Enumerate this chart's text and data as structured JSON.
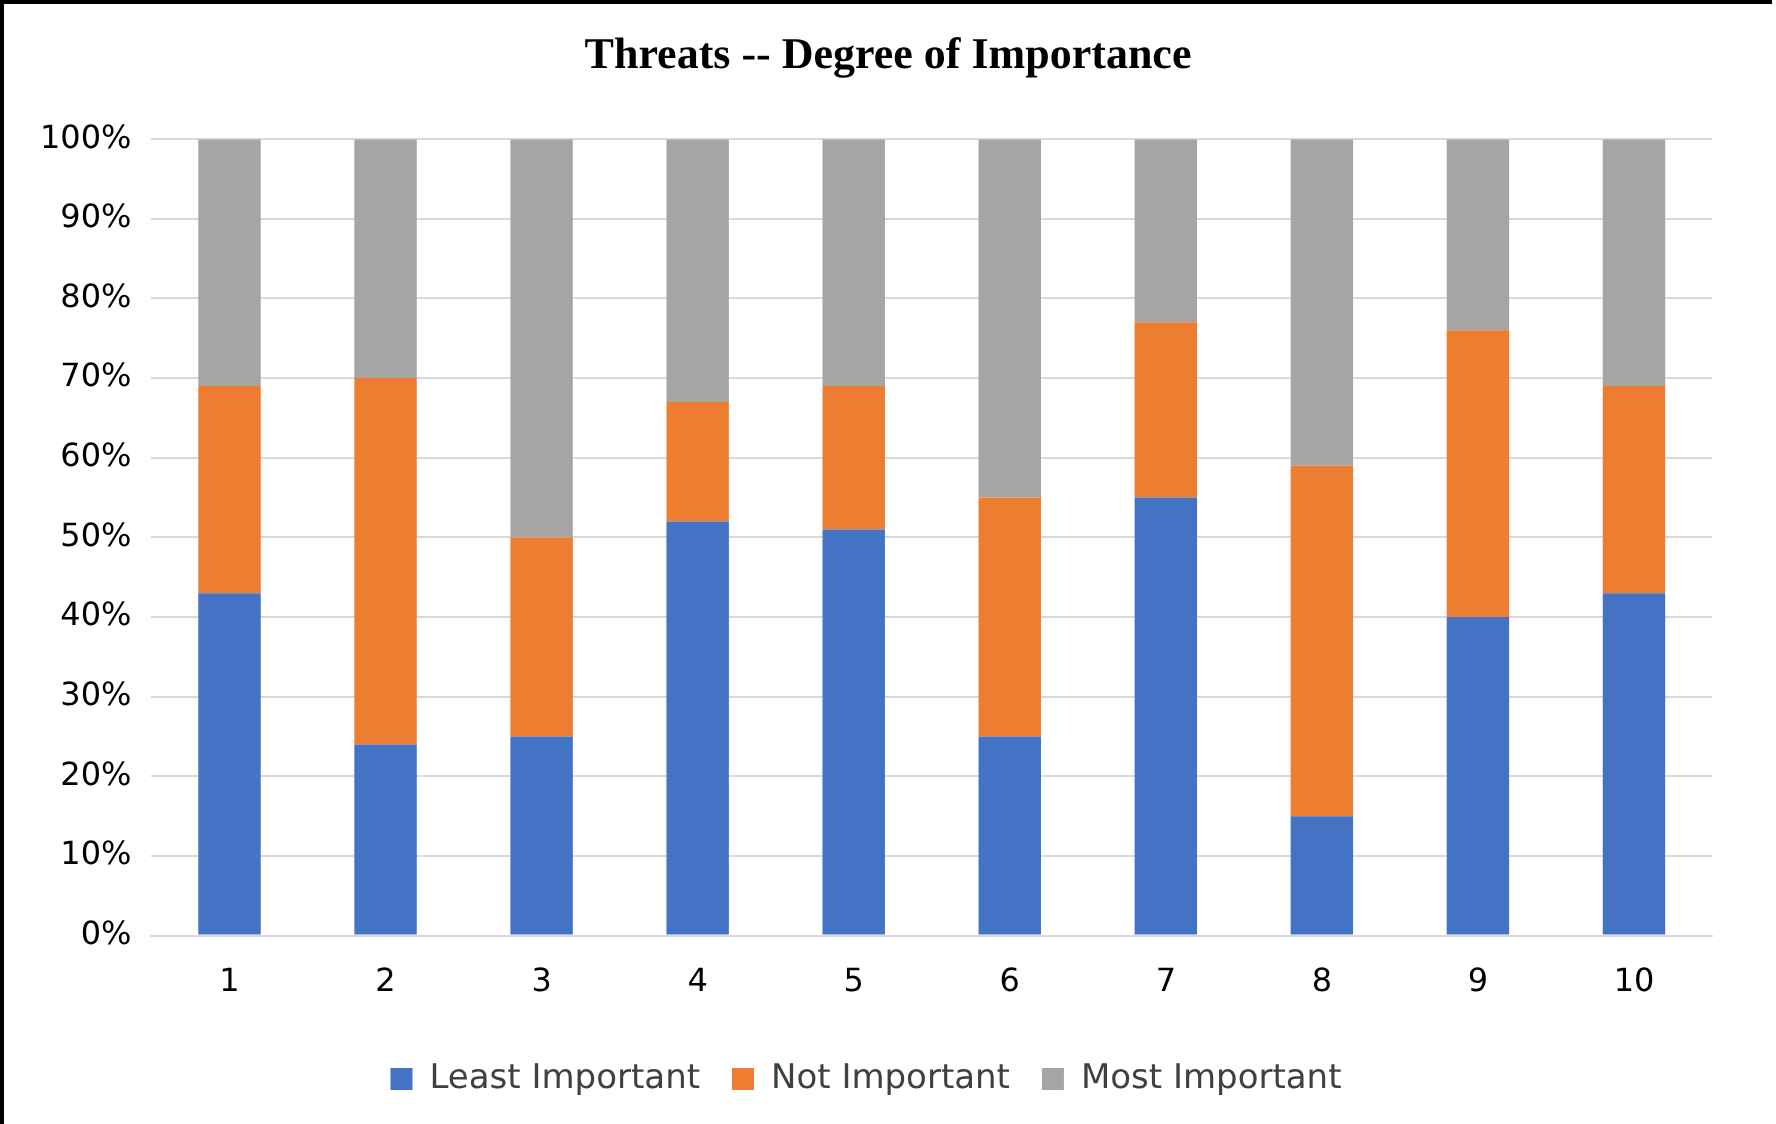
{
  "chart_data": {
    "type": "bar",
    "title": "Threats -- Degree of Importance",
    "categories": [
      "1",
      "2",
      "3",
      "4",
      "5",
      "6",
      "7",
      "8",
      "9",
      "10"
    ],
    "stacked": true,
    "series": [
      {
        "name": "Least Important",
        "color": "#4472c4",
        "values": [
          43,
          24,
          25,
          52,
          51,
          25,
          55,
          15,
          40,
          43
        ]
      },
      {
        "name": "Not Important",
        "color": "#ed7d31",
        "values": [
          26,
          46,
          25,
          15,
          18,
          30,
          22,
          44,
          36,
          26
        ]
      },
      {
        "name": "Most Important",
        "color": "#a5a5a5",
        "values": [
          31,
          30,
          50,
          33,
          31,
          45,
          23,
          41,
          24,
          31
        ]
      }
    ],
    "ylim": [
      0,
      100
    ],
    "yticks": [
      {
        "value": 0,
        "label": "0%"
      },
      {
        "value": 10,
        "label": "10%"
      },
      {
        "value": 20,
        "label": "20%"
      },
      {
        "value": 30,
        "label": "30%"
      },
      {
        "value": 40,
        "label": "40%"
      },
      {
        "value": 50,
        "label": "50%"
      },
      {
        "value": 60,
        "label": "60%"
      },
      {
        "value": 70,
        "label": "70%"
      },
      {
        "value": 80,
        "label": "80%"
      },
      {
        "value": 90,
        "label": "90%"
      },
      {
        "value": 100,
        "label": "100%"
      }
    ],
    "grid": "y",
    "legend": "bottom"
  }
}
